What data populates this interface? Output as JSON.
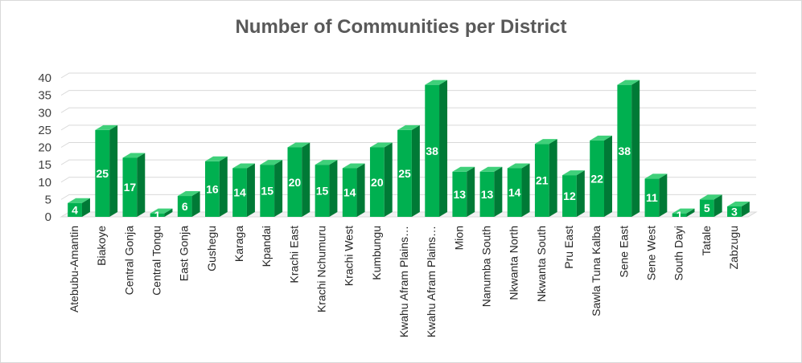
{
  "chart_data": {
    "type": "bar",
    "title": "Number of Communities per District",
    "xlabel": "",
    "ylabel": "",
    "ylim": [
      0,
      40
    ],
    "yticks": [
      0,
      5,
      10,
      15,
      20,
      25,
      30,
      35,
      40
    ],
    "grid": true,
    "legend": "none",
    "bar_color": "#00b050",
    "categories": [
      "Atebubu-Amantin",
      "Biakoye",
      "Central Gonja",
      "Central Tongu",
      "East Gonja",
      "Gushegu",
      "Karaga",
      "Kpandai",
      "Krachi East",
      "Krachi Nchumuru",
      "Krachi West",
      "Kumbungu",
      "Kwahu Afram Plains…",
      "Kwahu Afram Plains…",
      "Mion",
      "Nanumba South",
      "Nkwanta North",
      "Nkwanta South",
      "Pru East",
      "Sawla Tuna Kalba",
      "Sene East",
      "Sene West",
      "South Dayi",
      "Tatale",
      "Zabzugu"
    ],
    "values": [
      4,
      25,
      17,
      1,
      6,
      16,
      14,
      15,
      20,
      15,
      14,
      20,
      25,
      38,
      13,
      13,
      14,
      21,
      12,
      22,
      38,
      11,
      1,
      5,
      3
    ],
    "data_labels": [
      "4",
      "25",
      "17",
      "1",
      "6",
      "16",
      "14",
      "15",
      "20",
      "15",
      "14",
      "20",
      "25",
      "38",
      "13",
      "13",
      "14",
      "21",
      "12",
      "22",
      "38",
      "11",
      "1",
      "5",
      "3"
    ]
  }
}
